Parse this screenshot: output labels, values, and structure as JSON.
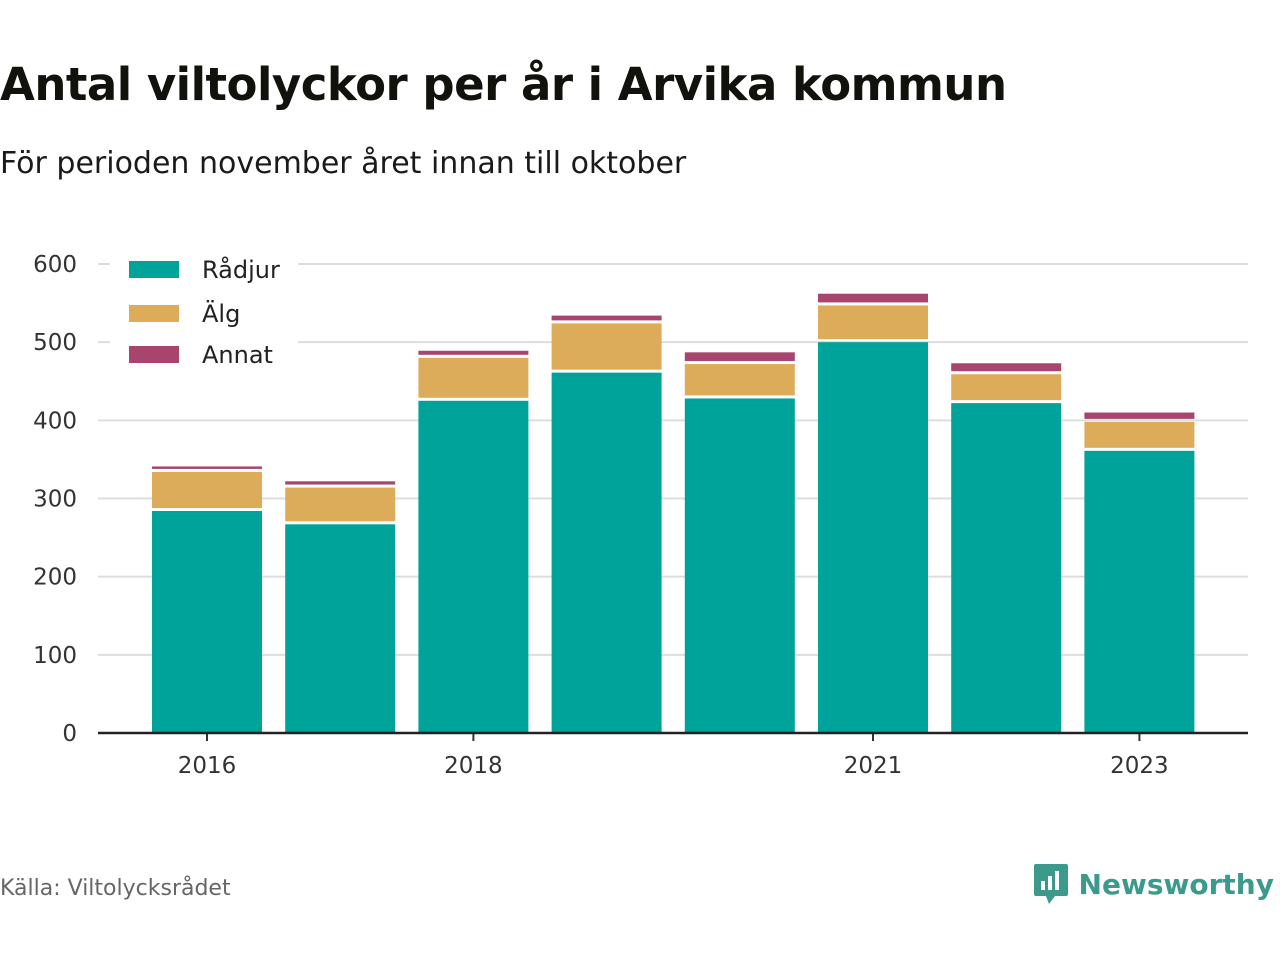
{
  "header": {
    "title": "Antal viltolyckor per år i Arvika kommun",
    "subtitle": "För perioden november året innan till oktober"
  },
  "footer": {
    "source": "Källa: Viltolycksrådet",
    "brand": "Newsworthy",
    "brand_icon": "bar-chart-speech-bubble-icon",
    "brand_color": "#3c9a8c"
  },
  "chart_data": {
    "type": "bar",
    "stacked": true,
    "title": "Antal viltolyckor per år i Arvika kommun",
    "subtitle": "För perioden november året innan till oktober",
    "categories": [
      "2016",
      "2017",
      "2018",
      "2019",
      "2020",
      "2021",
      "2022",
      "2023"
    ],
    "x_tick_labels": [
      "2016",
      "",
      "2018",
      "",
      "",
      "2021",
      "",
      "2023"
    ],
    "series": [
      {
        "name": "Rådjur",
        "color": "#00a39a",
        "values": [
          284,
          267,
          425,
          461,
          428,
          500,
          422,
          361
        ]
      },
      {
        "name": "Älg",
        "color": "#dcac5b",
        "values": [
          50,
          47,
          55,
          63,
          44,
          47,
          37,
          37
        ]
      },
      {
        "name": "Annat",
        "color": "#a8456e",
        "values": [
          7,
          8,
          9,
          10,
          15,
          15,
          14,
          12
        ]
      }
    ],
    "y_ticks": [
      0,
      100,
      200,
      300,
      400,
      500,
      600
    ],
    "ylim": [
      0,
      600
    ],
    "grid": true,
    "legend_position": "top-left"
  }
}
